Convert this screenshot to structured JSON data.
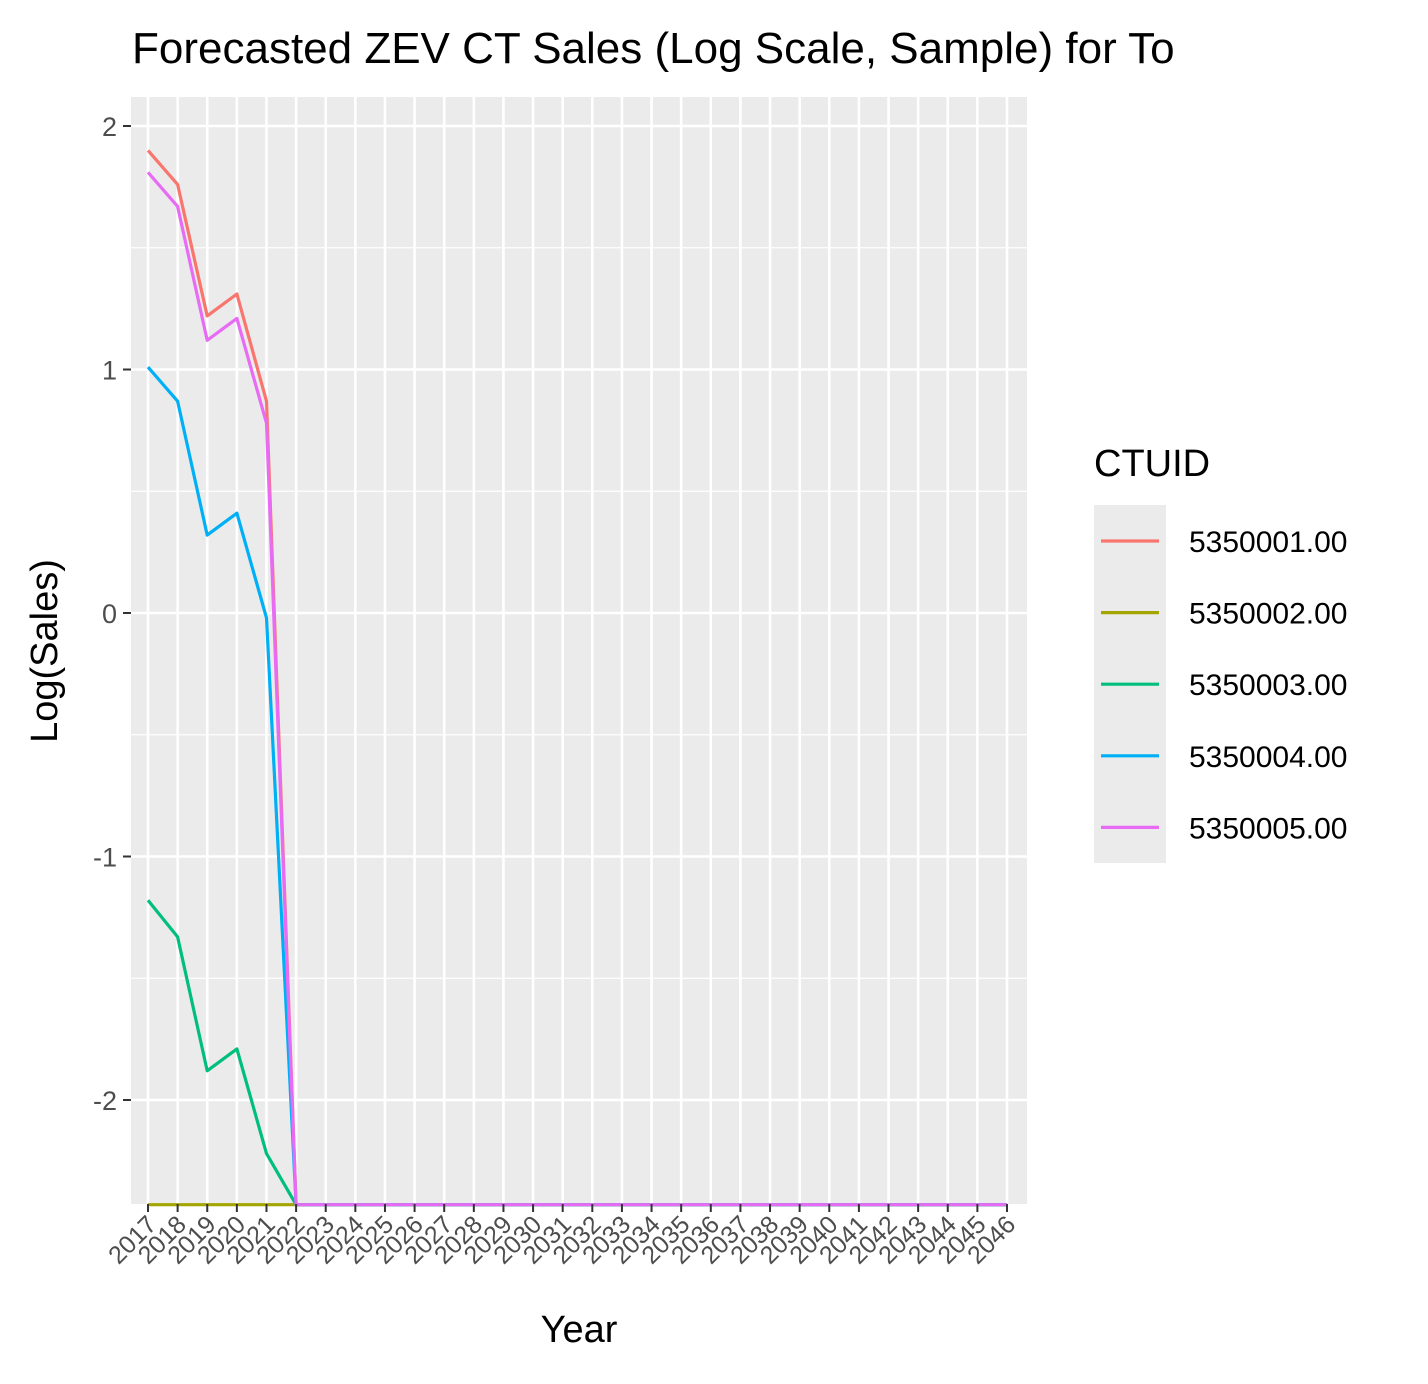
{
  "chart_data": {
    "type": "line",
    "title": "Forecasted ZEV CT Sales (Log Scale, Sample) for To",
    "xlabel": "Year",
    "ylabel": "Log(Sales)",
    "x": [
      2017,
      2018,
      2019,
      2020,
      2021,
      2022,
      2023,
      2024,
      2025,
      2026,
      2027,
      2028,
      2029,
      2030,
      2031,
      2032,
      2033,
      2034,
      2035,
      2036,
      2037,
      2038,
      2039,
      2040,
      2041,
      2042,
      2043,
      2044,
      2045,
      2046
    ],
    "ylim": [
      -2.43,
      2.1
    ],
    "yticks": [
      2,
      1,
      0,
      -1,
      -2
    ],
    "ytick_labels": [
      "2",
      "1",
      "0",
      "-1",
      "-2"
    ],
    "grid": true,
    "legend": {
      "title": "CTUID",
      "position": "right"
    },
    "series": [
      {
        "name": "5350001.00",
        "color": "#F8766D",
        "values": [
          1.9,
          1.76,
          1.22,
          1.31,
          0.87,
          -2.43,
          -2.43,
          -2.43,
          -2.43,
          -2.43,
          -2.43,
          -2.43,
          -2.43,
          -2.43,
          -2.43,
          -2.43,
          -2.43,
          -2.43,
          -2.43,
          -2.43,
          -2.43,
          -2.43,
          -2.43,
          -2.43,
          -2.43,
          -2.43,
          -2.43,
          -2.43,
          -2.43,
          -2.43
        ]
      },
      {
        "name": "5350002.00",
        "color": "#A3A500",
        "values": [
          -2.43,
          -2.43,
          -2.43,
          -2.43,
          -2.43,
          -2.43,
          -2.43,
          -2.43,
          -2.43,
          -2.43,
          -2.43,
          -2.43,
          -2.43,
          -2.43,
          -2.43,
          -2.43,
          -2.43,
          -2.43,
          -2.43,
          -2.43,
          -2.43,
          -2.43,
          -2.43,
          -2.43,
          -2.43,
          -2.43,
          -2.43,
          -2.43,
          -2.43,
          -2.43
        ]
      },
      {
        "name": "5350003.00",
        "color": "#00BF7D",
        "values": [
          -1.18,
          -1.33,
          -1.88,
          -1.79,
          -2.22,
          -2.43,
          -2.43,
          -2.43,
          -2.43,
          -2.43,
          -2.43,
          -2.43,
          -2.43,
          -2.43,
          -2.43,
          -2.43,
          -2.43,
          -2.43,
          -2.43,
          -2.43,
          -2.43,
          -2.43,
          -2.43,
          -2.43,
          -2.43,
          -2.43,
          -2.43,
          -2.43,
          -2.43,
          -2.43
        ]
      },
      {
        "name": "5350004.00",
        "color": "#00B0F6",
        "values": [
          1.01,
          0.87,
          0.32,
          0.41,
          -0.02,
          -2.43,
          -2.43,
          -2.43,
          -2.43,
          -2.43,
          -2.43,
          -2.43,
          -2.43,
          -2.43,
          -2.43,
          -2.43,
          -2.43,
          -2.43,
          -2.43,
          -2.43,
          -2.43,
          -2.43,
          -2.43,
          -2.43,
          -2.43,
          -2.43,
          -2.43,
          -2.43,
          -2.43,
          -2.43
        ]
      },
      {
        "name": "5350005.00",
        "color": "#E76BF3",
        "values": [
          1.81,
          1.67,
          1.12,
          1.21,
          0.78,
          -2.43,
          -2.43,
          -2.43,
          -2.43,
          -2.43,
          -2.43,
          -2.43,
          -2.43,
          -2.43,
          -2.43,
          -2.43,
          -2.43,
          -2.43,
          -2.43,
          -2.43,
          -2.43,
          -2.43,
          -2.43,
          -2.43,
          -2.43,
          -2.43,
          -2.43,
          -2.43,
          -2.43,
          -2.43
        ]
      }
    ]
  }
}
